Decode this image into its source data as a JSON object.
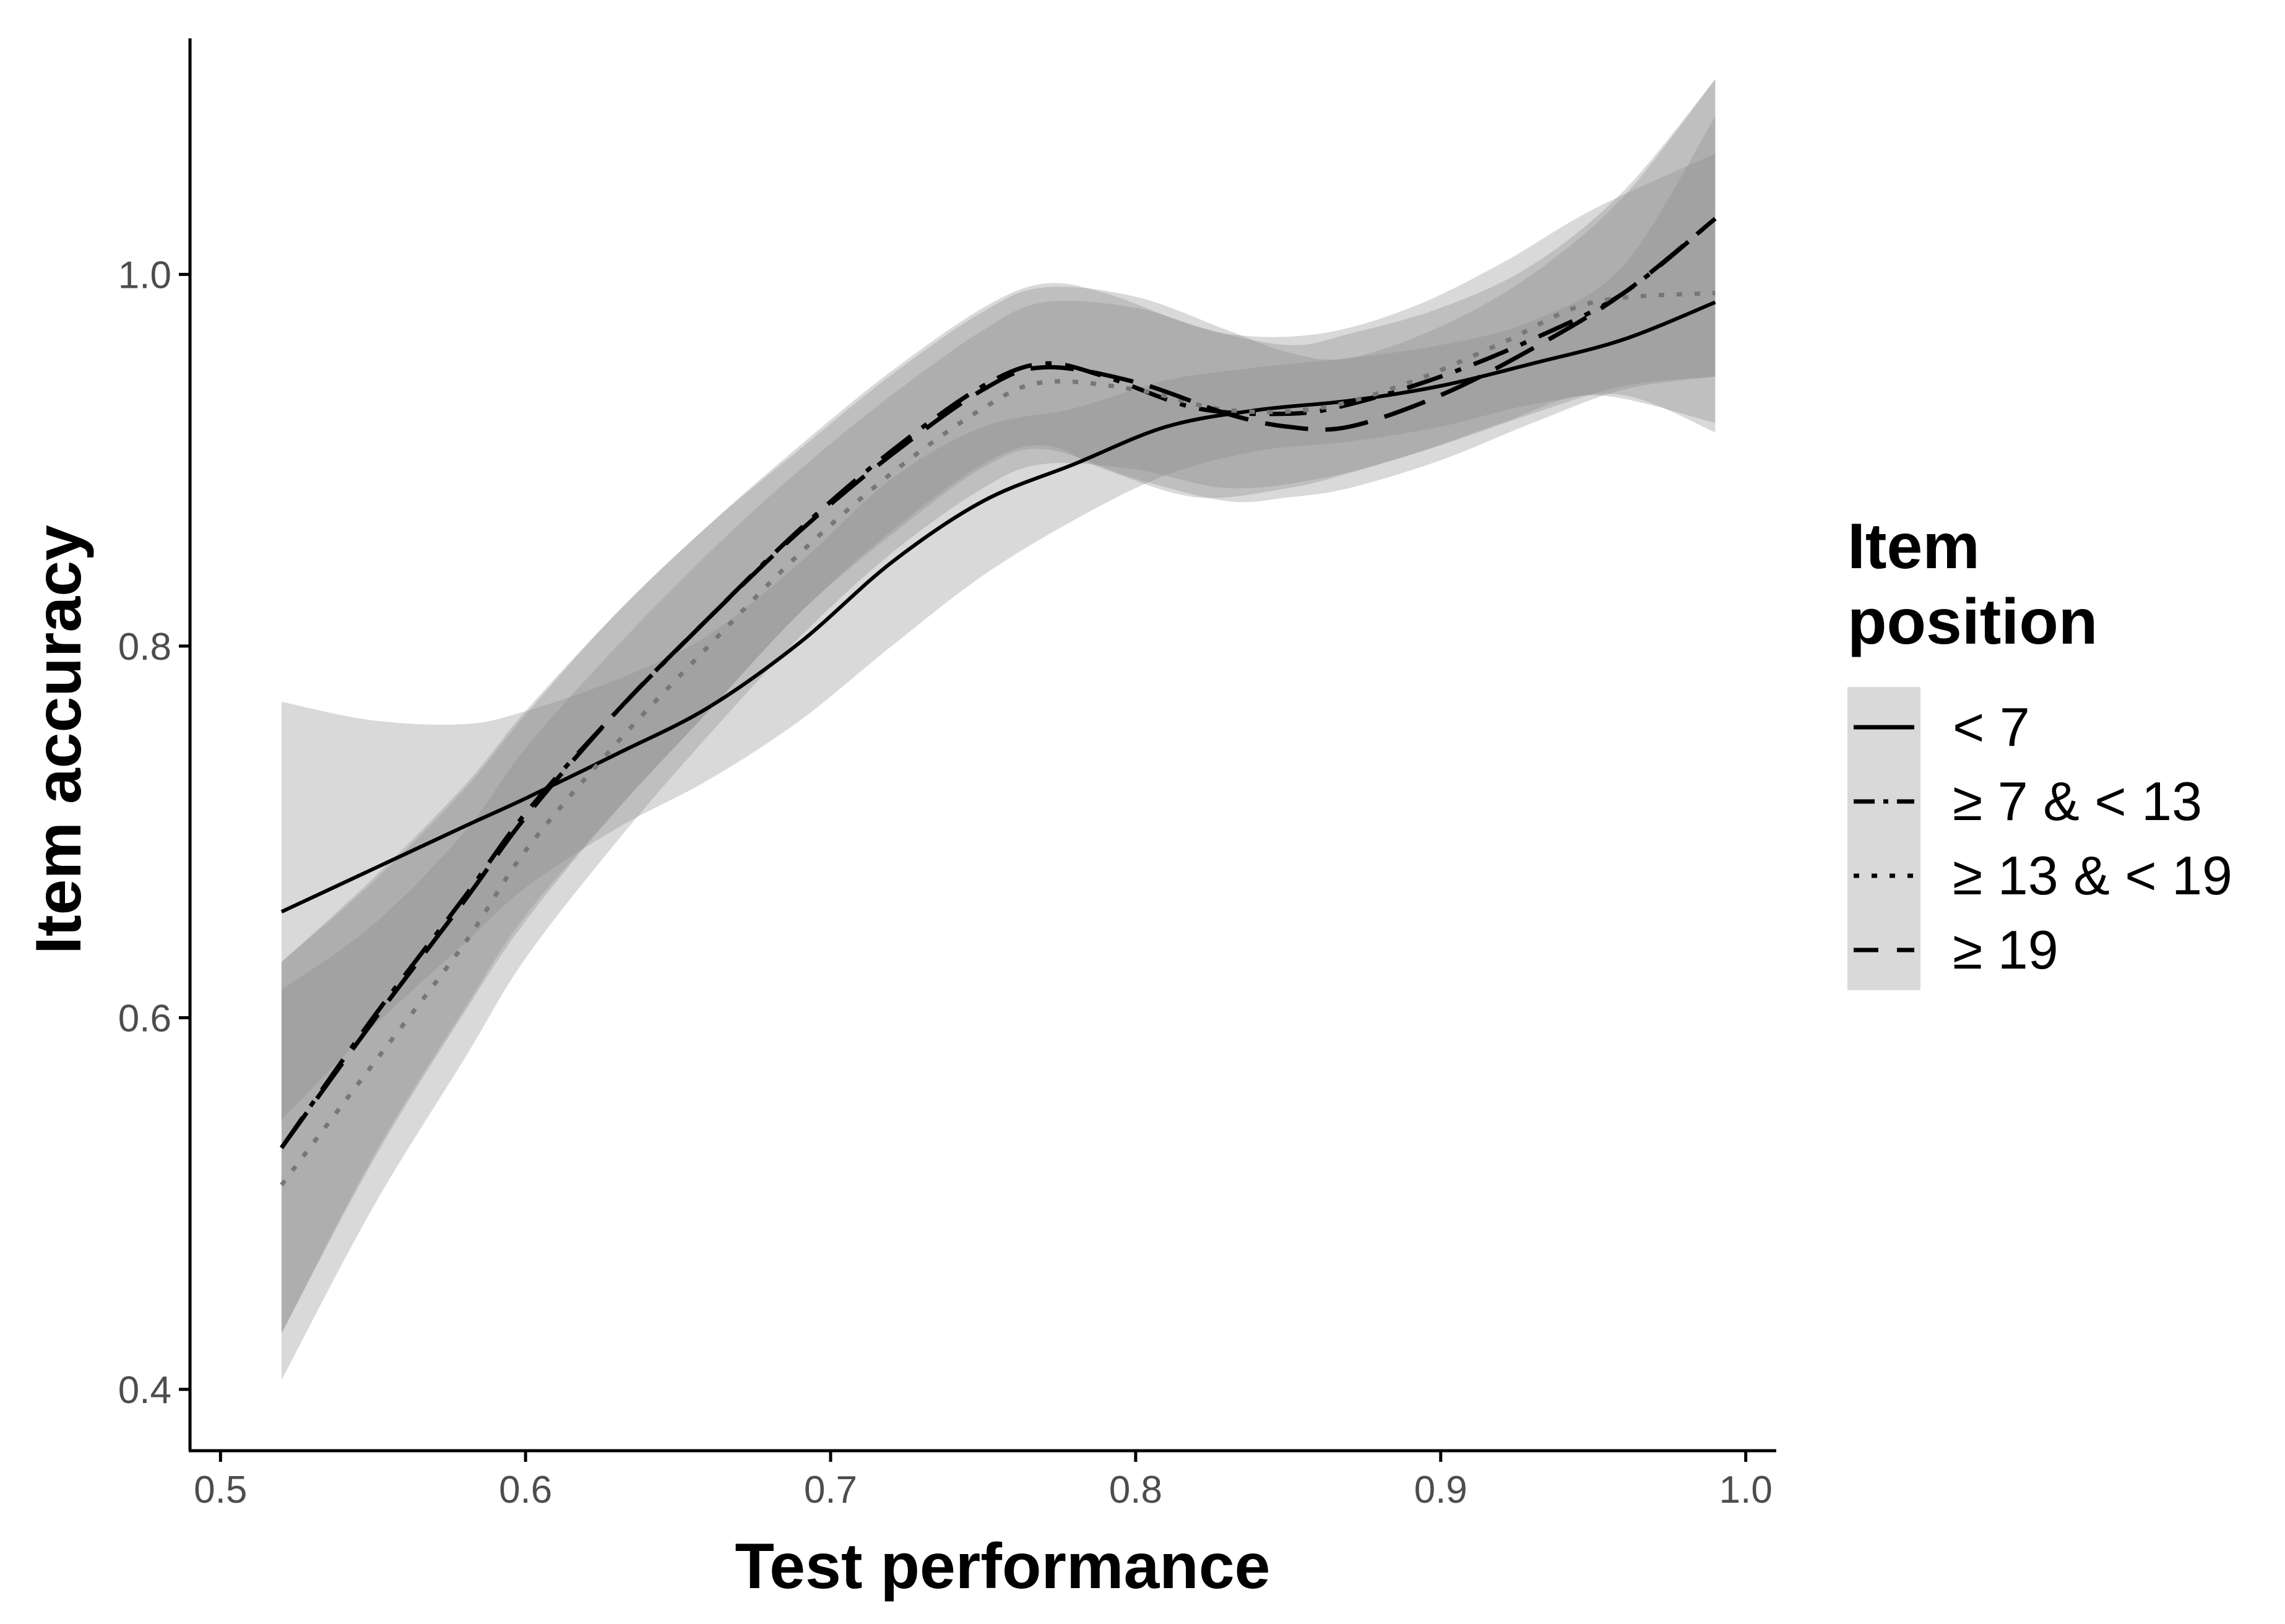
{
  "chart_data": {
    "type": "line",
    "title": "",
    "xlabel": "Test performance",
    "ylabel": "Item accuracy",
    "xlim": [
      0.49,
      1.01
    ],
    "ylim": [
      0.367,
      1.127
    ],
    "xticks": [
      0.5,
      0.6,
      0.7,
      0.8,
      0.9,
      1.0
    ],
    "xtick_labels": [
      "0.5",
      "0.6",
      "0.7",
      "0.8",
      "0.9",
      "1.0"
    ],
    "yticks": [
      0.4,
      0.6,
      0.8,
      1.0
    ],
    "ytick_labels": [
      "0.4",
      "0.6",
      "0.8",
      "1.0"
    ],
    "grid": false,
    "legend": {
      "title_lines": [
        "Item",
        "position"
      ],
      "placement": "right"
    },
    "series": [
      {
        "name": "< 7",
        "linestyle": "solid",
        "color": "#000000",
        "x": [
          0.52,
          0.55,
          0.58,
          0.6,
          0.63,
          0.66,
          0.69,
          0.72,
          0.75,
          0.78,
          0.81,
          0.84,
          0.87,
          0.9,
          0.93,
          0.96,
          0.99
        ],
        "y": [
          0.657,
          0.68,
          0.703,
          0.718,
          0.742,
          0.767,
          0.802,
          0.845,
          0.878,
          0.898,
          0.918,
          0.927,
          0.932,
          0.94,
          0.952,
          0.965,
          0.985
        ],
        "ci_lower": [
          0.545,
          0.595,
          0.64,
          0.67,
          0.702,
          0.728,
          0.76,
          0.8,
          0.838,
          0.868,
          0.892,
          0.905,
          0.91,
          0.918,
          0.93,
          0.935,
          0.915
        ],
        "ci_upper": [
          0.77,
          0.76,
          0.758,
          0.765,
          0.782,
          0.806,
          0.845,
          0.89,
          0.918,
          0.928,
          0.943,
          0.95,
          0.955,
          0.962,
          0.975,
          1.005,
          1.085
        ]
      },
      {
        "name": "≥ 7 & < 13",
        "linestyle": "dashdot",
        "color": "#000000",
        "x": [
          0.52,
          0.55,
          0.58,
          0.6,
          0.63,
          0.66,
          0.69,
          0.72,
          0.75,
          0.77,
          0.79,
          0.82,
          0.85,
          0.87,
          0.9,
          0.93,
          0.96,
          0.99
        ],
        "y": [
          0.53,
          0.6,
          0.665,
          0.71,
          0.765,
          0.815,
          0.863,
          0.905,
          0.94,
          0.952,
          0.945,
          0.928,
          0.925,
          0.93,
          0.945,
          0.965,
          0.99,
          1.03
        ],
        "ci_lower": [
          0.43,
          0.525,
          0.605,
          0.655,
          0.712,
          0.765,
          0.818,
          0.862,
          0.898,
          0.908,
          0.895,
          0.88,
          0.885,
          0.893,
          0.908,
          0.925,
          0.94,
          0.945
        ],
        "ci_upper": [
          0.63,
          0.675,
          0.725,
          0.765,
          0.818,
          0.865,
          0.908,
          0.948,
          0.982,
          0.995,
          0.99,
          0.972,
          0.962,
          0.968,
          0.982,
          1.005,
          1.045,
          1.105
        ]
      },
      {
        "name": "≥ 13 & < 19",
        "linestyle": "dotted",
        "color": "#000000",
        "x": [
          0.52,
          0.55,
          0.58,
          0.6,
          0.63,
          0.66,
          0.69,
          0.72,
          0.75,
          0.77,
          0.8,
          0.83,
          0.86,
          0.89,
          0.92,
          0.95,
          0.99
        ],
        "y": [
          0.51,
          0.575,
          0.64,
          0.69,
          0.748,
          0.8,
          0.85,
          0.893,
          0.928,
          0.942,
          0.938,
          0.927,
          0.928,
          0.942,
          0.963,
          0.985,
          0.99
        ],
        "ci_lower": [
          0.405,
          0.498,
          0.578,
          0.632,
          0.695,
          0.752,
          0.805,
          0.85,
          0.885,
          0.898,
          0.895,
          0.885,
          0.89,
          0.903,
          0.92,
          0.935,
          0.92
        ],
        "ci_upper": [
          0.615,
          0.65,
          0.7,
          0.745,
          0.8,
          0.85,
          0.895,
          0.935,
          0.97,
          0.985,
          0.982,
          0.968,
          0.968,
          0.982,
          1.006,
          1.035,
          1.065
        ]
      },
      {
        "name": "≥ 19",
        "linestyle": "longdash",
        "color": "#000000",
        "x": [
          0.52,
          0.55,
          0.58,
          0.6,
          0.63,
          0.66,
          0.69,
          0.72,
          0.75,
          0.77,
          0.8,
          0.83,
          0.85,
          0.87,
          0.9,
          0.93,
          0.96,
          0.99
        ],
        "y": [
          0.53,
          0.598,
          0.663,
          0.708,
          0.765,
          0.815,
          0.862,
          0.903,
          0.938,
          0.95,
          0.942,
          0.925,
          0.918,
          0.918,
          0.935,
          0.96,
          0.99,
          1.03
        ],
        "ci_lower": [
          0.43,
          0.523,
          0.603,
          0.652,
          0.712,
          0.765,
          0.818,
          0.86,
          0.896,
          0.906,
          0.89,
          0.878,
          0.88,
          0.885,
          0.9,
          0.92,
          0.938,
          0.945
        ],
        "ci_upper": [
          0.63,
          0.673,
          0.723,
          0.763,
          0.818,
          0.865,
          0.906,
          0.946,
          0.98,
          0.993,
          0.988,
          0.97,
          0.958,
          0.955,
          0.972,
          1.0,
          1.042,
          1.105
        ]
      }
    ]
  }
}
